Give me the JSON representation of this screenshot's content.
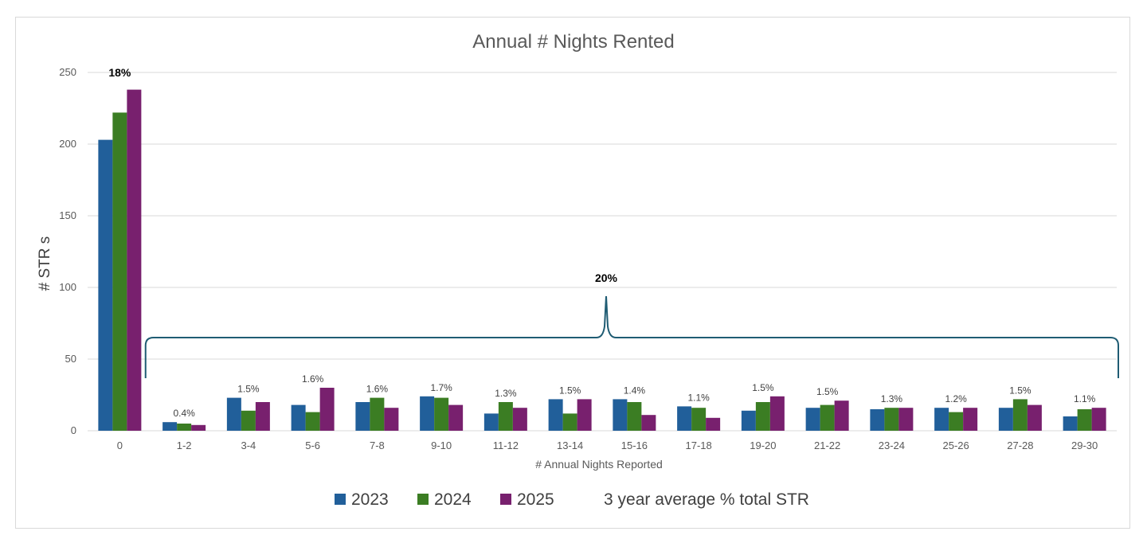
{
  "chart_data": {
    "type": "bar",
    "title": "Annual # Nights Rented",
    "xlabel": "# Annual Nights Reported",
    "ylabel": "# STR s",
    "ylim": [
      0,
      250
    ],
    "yticks": [
      "0",
      "50",
      "100",
      "150",
      "200",
      "250"
    ],
    "grid": true,
    "legend_position": "bottom",
    "categories": [
      "0",
      "1-2",
      "3-4",
      "5-6",
      "7-8",
      "9-10",
      "11-12",
      "13-14",
      "15-16",
      "17-18",
      "19-20",
      "21-22",
      "23-24",
      "25-26",
      "27-28",
      "29-30"
    ],
    "series": [
      {
        "name": "2023",
        "color": "#215f9a",
        "values": [
          203,
          6,
          23,
          18,
          20,
          24,
          12,
          22,
          22,
          17,
          14,
          16,
          15,
          16,
          16,
          10
        ]
      },
      {
        "name": "2024",
        "color": "#3b7d23",
        "values": [
          222,
          5,
          14,
          13,
          23,
          23,
          20,
          12,
          20,
          16,
          20,
          18,
          16,
          13,
          22,
          15
        ]
      },
      {
        "name": "2025",
        "color": "#78206e",
        "values": [
          238,
          4,
          20,
          30,
          16,
          18,
          16,
          22,
          11,
          9,
          24,
          21,
          16,
          16,
          18,
          16
        ]
      }
    ],
    "data_labels": [
      "18%",
      "0.4%",
      "1.5%",
      "1.6%",
      "1.6%",
      "1.7%",
      "1.3%",
      "1.5%",
      "1.4%",
      "1.1%",
      "1.5%",
      "1.5%",
      "1.3%",
      "1.2%",
      "1.5%",
      "1.1%"
    ],
    "bracket_label": "20%",
    "legend_extra": "3 year average % total STR"
  }
}
